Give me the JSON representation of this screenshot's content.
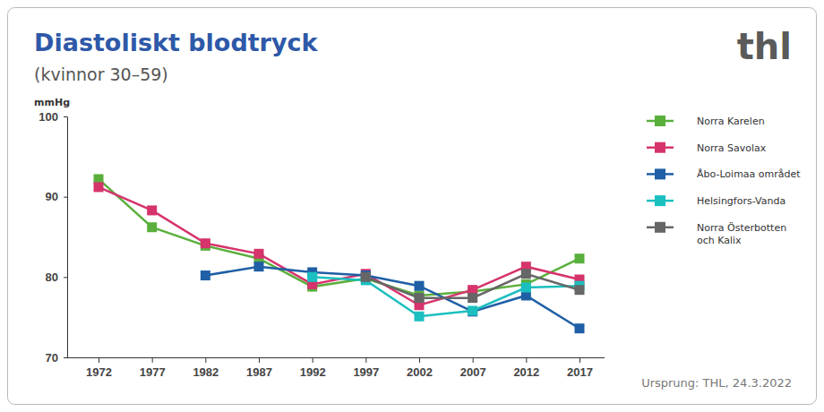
{
  "chart_data": {
    "type": "line",
    "title": "Diastoliskt blodtryck",
    "subtitle": "(kvinnor 30–59)",
    "y_label": "mmHg",
    "logo": "thl",
    "source": "Ursprung: THL, 24.3.2022",
    "categories": [
      "1972",
      "1977",
      "1982",
      "1987",
      "1992",
      "1997",
      "2002",
      "2007",
      "2012",
      "2017"
    ],
    "series": [
      {
        "name": "Norra Karelen",
        "color": "#5aaf3c",
        "marker": "square",
        "values": [
          92.2,
          86.2,
          83.9,
          82.3,
          78.8,
          79.8,
          77.7,
          78.2,
          79.1,
          82.3
        ]
      },
      {
        "name": "Norra Savolax",
        "color": "#d6336c",
        "marker": "square",
        "values": [
          91.2,
          88.3,
          84.2,
          82.9,
          79.1,
          80.4,
          76.5,
          78.4,
          81.3,
          79.7
        ]
      },
      {
        "name": "Åbo-Loimaa området",
        "color": "#1f5fa6",
        "marker": "square",
        "values": [
          null,
          null,
          80.2,
          81.3,
          80.6,
          80.2,
          78.9,
          75.7,
          77.7,
          73.6
        ]
      },
      {
        "name": "Helsingfors-Vanda",
        "color": "#1bbfbf",
        "marker": "square",
        "values": [
          null,
          null,
          null,
          null,
          80.0,
          79.6,
          75.1,
          75.8,
          78.7,
          78.9
        ]
      },
      {
        "name": "Norra Österbotten och Kalix",
        "color": "#666666",
        "marker": "square",
        "values": [
          null,
          null,
          null,
          null,
          null,
          80.0,
          77.4,
          77.4,
          80.4,
          78.4
        ]
      }
    ],
    "ylim": [
      70,
      100
    ],
    "yticks": [
      70,
      80,
      90,
      100
    ],
    "grid": false,
    "legend": "right"
  }
}
